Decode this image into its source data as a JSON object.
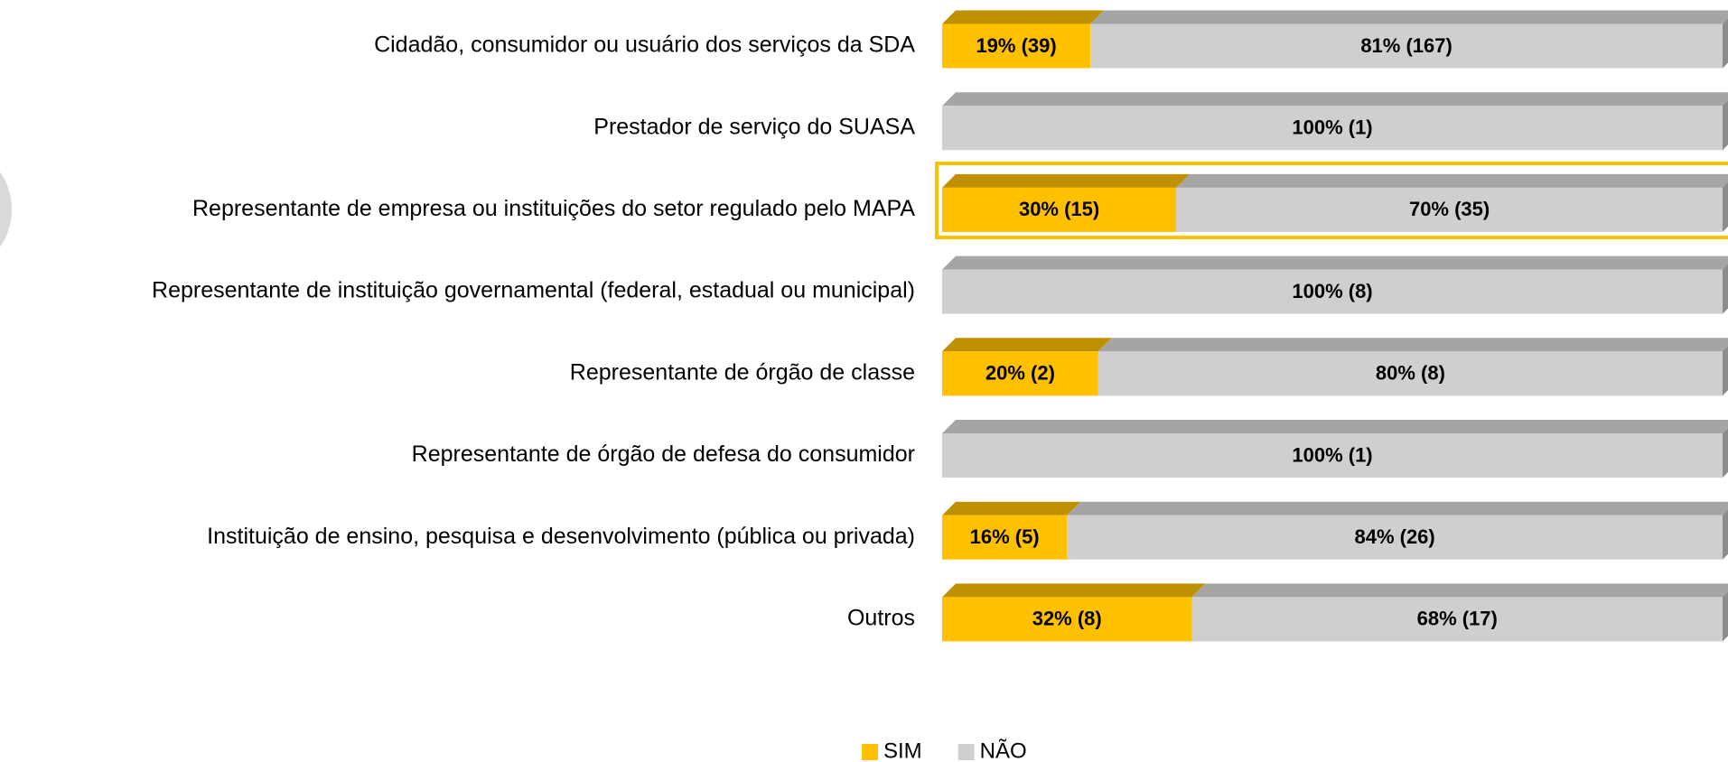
{
  "chart_data": {
    "type": "stacked_bar_horizontal",
    "categories": [
      "Cidadão, consumidor ou usuário dos serviços da SDA",
      "Prestador de serviço do SUASA",
      "Representante de empresa ou instituições do setor regulado pelo MAPA",
      "Representante de instituição governamental (federal, estadual ou municipal)",
      "Representante de órgão de classe",
      "Representante de órgão de defesa do consumidor",
      "Instituição de ensino, pesquisa e desenvolvimento (pública ou privada)",
      "Outros"
    ],
    "series": [
      {
        "name": "SIM",
        "color": "#FFC000",
        "top_color": "#BF9000",
        "values": [
          19,
          0,
          30,
          0,
          20,
          0,
          16,
          32
        ],
        "value_labels": [
          "19% (39)",
          null,
          "30% (15)",
          null,
          "20% (2)",
          null,
          "16% (5)",
          "32% (8)"
        ]
      },
      {
        "name": "NÃO",
        "color": "#D0CECE",
        "top_color": "#A5A5A5",
        "values": [
          81,
          100,
          70,
          100,
          80,
          100,
          84,
          68
        ],
        "value_labels": [
          "81% (167)",
          "100% (1)",
          "70% (35)",
          "100% (8)",
          "80% (8)",
          "100% (1)",
          "84% (26)",
          "68% (17)"
        ]
      }
    ],
    "xlim": [
      0,
      100
    ],
    "legend": "bottom"
  }
}
